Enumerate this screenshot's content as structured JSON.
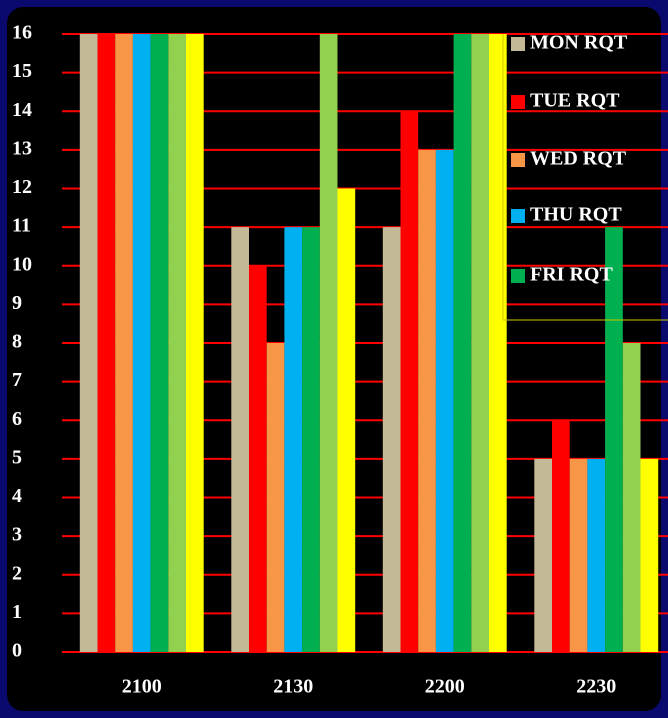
{
  "chart_data": {
    "type": "bar",
    "categories": [
      "2100",
      "2130",
      "2200",
      "2230"
    ],
    "series": [
      {
        "name": "MON RQT",
        "color": "#c4b996",
        "values": [
          16,
          11,
          11,
          5
        ]
      },
      {
        "name": "TUE RQT",
        "color": "#ff0000",
        "values": [
          16,
          10,
          14,
          6
        ]
      },
      {
        "name": "WED RQT",
        "color": "#f79646",
        "values": [
          16,
          8,
          13,
          5
        ]
      },
      {
        "name": "THU RQT",
        "color": "#00b0f0",
        "values": [
          16,
          11,
          13,
          5
        ]
      },
      {
        "name": "FRI RQT",
        "color": "#00b050",
        "values": [
          16,
          11,
          16,
          11
        ]
      },
      {
        "color": "#92d050",
        "values": [
          16,
          16,
          16,
          8
        ]
      },
      {
        "color": "#ffff00",
        "values": [
          16,
          12,
          16,
          5
        ]
      }
    ],
    "ylim": [
      0,
      16
    ],
    "yticks": [
      0,
      1,
      2,
      3,
      4,
      5,
      6,
      7,
      8,
      9,
      10,
      11,
      12,
      13,
      14,
      15,
      16
    ],
    "grid": true,
    "grid_color": "#ff0000",
    "legend": "upper right"
  }
}
